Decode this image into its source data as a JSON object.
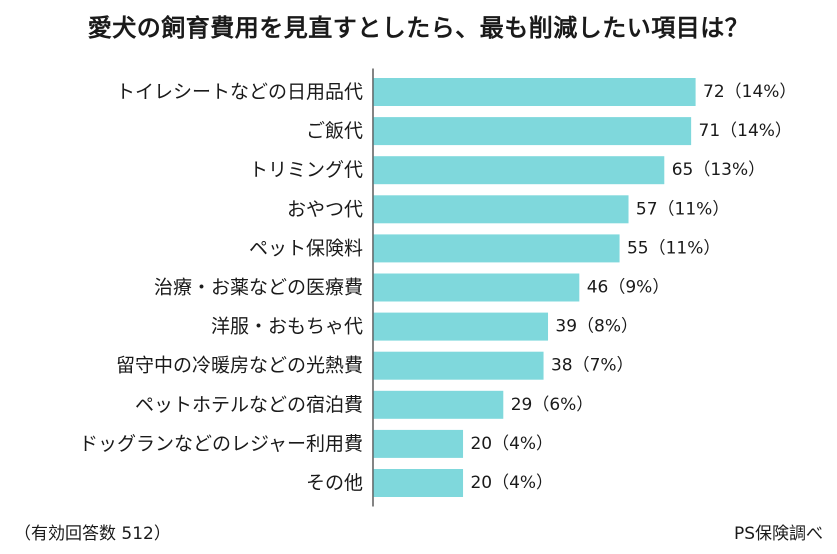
{
  "chart_data": {
    "type": "bar",
    "orientation": "horizontal",
    "title": "愛犬の飼育費用を見直すとしたら、最も削減したい項目は？",
    "categories": [
      "トイレシートなどの日用品代",
      "ご飯代",
      "トリミング代",
      "おやつ代",
      "ペット保険料",
      "治療・お薬などの医療費",
      "洋服・おもちゃ代",
      "留守中の冷暖房などの光熱費",
      "ペットホテルなどの宿泊費",
      "ドッグランなどのレジャー利用費",
      "その他"
    ],
    "values": [
      72,
      71,
      65,
      57,
      55,
      46,
      39,
      38,
      29,
      20,
      20
    ],
    "data_labels": [
      "72（14%）",
      "71（14%）",
      "65（13%）",
      "57（11%）",
      "55（11%）",
      "46（9%）",
      "39（8%）",
      "38（7%）",
      "29（6%）",
      "20（4%）",
      "20（4%）"
    ],
    "bar_color": "#7fd8dc",
    "xlim": [
      0,
      72
    ]
  },
  "footer": {
    "note": "（有効回答数 512）",
    "source": "PS保険調べ"
  }
}
